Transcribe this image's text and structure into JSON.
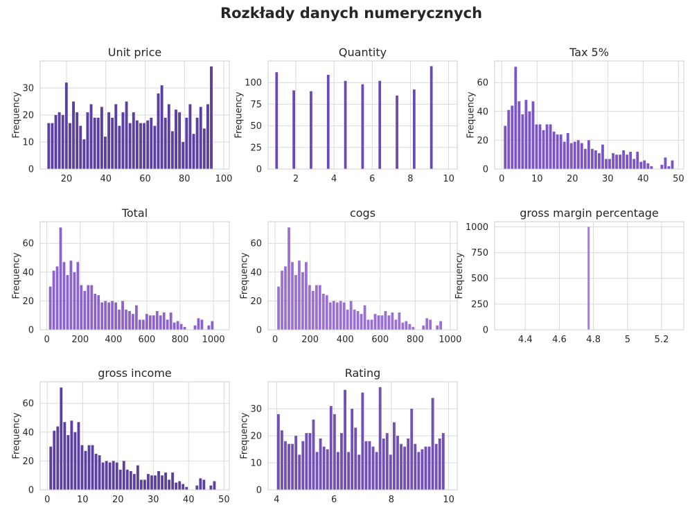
{
  "figure": {
    "title": "Rozkłady danych numerycznych"
  },
  "chart_data": [
    {
      "type": "bar",
      "title": "Unit price",
      "ylabel": "Frequency",
      "xlim": [
        6.6,
        102.8
      ],
      "ylim": [
        0,
        40
      ],
      "xticks": [
        20,
        40,
        60,
        80,
        100
      ],
      "yticks": [
        0,
        10,
        20,
        30
      ],
      "color": "#5b3fa3",
      "bin_start": 10.08,
      "bin_width": 1.798,
      "values": [
        17,
        17,
        20,
        21,
        20,
        32,
        17,
        25,
        21,
        16,
        11,
        21,
        24,
        19,
        19,
        23,
        12,
        21,
        19,
        24,
        16,
        21,
        25,
        17,
        21,
        18,
        17,
        17,
        18,
        19,
        16,
        28,
        31,
        19,
        24,
        14,
        22,
        21,
        10,
        19,
        24,
        13,
        19,
        23,
        15,
        24,
        38
      ]
    },
    {
      "type": "bar",
      "title": "Quantity",
      "ylabel": "Frequency",
      "xlim": [
        0.55,
        10.45
      ],
      "ylim": [
        0,
        125
      ],
      "xticks": [
        2,
        4,
        6,
        8,
        10
      ],
      "yticks": [
        0,
        25,
        50,
        75,
        100
      ],
      "color": "#6a48b8",
      "bin_start": 0.91,
      "bin_width": 0.18,
      "values": [
        112,
        0,
        0,
        0,
        0,
        91,
        0,
        0,
        0,
        0,
        90,
        0,
        0,
        0,
        0,
        109,
        0,
        0,
        0,
        0,
        102,
        0,
        0,
        0,
        0,
        98,
        0,
        0,
        0,
        0,
        102,
        0,
        0,
        0,
        0,
        85,
        0,
        0,
        0,
        0,
        92,
        0,
        0,
        0,
        0,
        119
      ]
    },
    {
      "type": "bar",
      "title": "Tax 5%",
      "ylabel": "Frequency",
      "xlim": [
        -2.0,
        51.5
      ],
      "ylim": [
        0,
        75
      ],
      "xticks": [
        0,
        10,
        20,
        30,
        40,
        50
      ],
      "yticks": [
        0,
        20,
        40,
        60
      ],
      "color": "#7b55c8",
      "bin_start": 0.51,
      "bin_width": 0.985,
      "values": [
        30,
        41,
        44,
        71,
        47,
        38,
        48,
        40,
        47,
        31,
        31,
        27,
        31,
        31,
        26,
        24,
        24,
        19,
        25,
        18,
        19,
        20,
        18,
        14,
        20,
        14,
        13,
        11,
        17,
        7,
        7,
        11,
        10,
        10,
        13,
        10,
        12,
        7,
        12,
        5,
        6,
        4,
        2,
        0,
        0,
        3,
        8,
        2,
        6
      ]
    },
    {
      "type": "bar",
      "title": "Total",
      "ylabel": "Frequency",
      "xlim": [
        -40,
        1095
      ],
      "ylim": [
        0,
        75
      ],
      "xticks": [
        0,
        200,
        400,
        600,
        800,
        1000
      ],
      "yticks": [
        0,
        20,
        40,
        60
      ],
      "color": "#8c62cf",
      "bin_start": 10.68,
      "bin_width": 20.68,
      "values": [
        30,
        41,
        44,
        71,
        47,
        38,
        48,
        40,
        47,
        31,
        27,
        31,
        31,
        25,
        24,
        19,
        20,
        19,
        20,
        19,
        14,
        20,
        14,
        13,
        11,
        17,
        7,
        7,
        11,
        10,
        10,
        13,
        10,
        12,
        7,
        12,
        5,
        6,
        4,
        2,
        0,
        0,
        3,
        8,
        7,
        0,
        3,
        6
      ]
    },
    {
      "type": "bar",
      "title": "cogs",
      "ylabel": "Frequency",
      "xlim": [
        -40,
        1040
      ],
      "ylim": [
        0,
        75
      ],
      "xticks": [
        0,
        200,
        400,
        600,
        800,
        1000
      ],
      "yticks": [
        0,
        20,
        40,
        60
      ],
      "color": "#9b70d6",
      "bin_start": 10.17,
      "bin_width": 19.7,
      "values": [
        30,
        41,
        44,
        71,
        47,
        38,
        48,
        40,
        47,
        31,
        27,
        31,
        31,
        25,
        24,
        19,
        20,
        19,
        20,
        19,
        14,
        20,
        14,
        13,
        11,
        17,
        7,
        7,
        11,
        10,
        10,
        13,
        10,
        12,
        7,
        12,
        5,
        6,
        4,
        2,
        0,
        0,
        3,
        8,
        7,
        0,
        3,
        6
      ]
    },
    {
      "type": "bar",
      "title": "gross margin percentage",
      "ylabel": "Frequency",
      "xlim": [
        4.22,
        5.33
      ],
      "ylim": [
        0,
        1050
      ],
      "xticks": [
        4.4,
        4.6,
        4.8,
        5.0,
        5.2
      ],
      "yticks": [
        0,
        250,
        500,
        750,
        1000
      ],
      "color": "#a47fd9",
      "bin_start": 4.7635,
      "bin_width": 0.017,
      "values": [
        1000
      ]
    },
    {
      "type": "bar",
      "title": "gross income",
      "ylabel": "Frequency",
      "xlim": [
        -2.0,
        51.5
      ],
      "ylim": [
        0,
        75
      ],
      "xticks": [
        0,
        10,
        20,
        30,
        40,
        50
      ],
      "yticks": [
        0,
        20,
        40,
        60
      ],
      "color": "#5b3fa3",
      "bin_start": 0.51,
      "bin_width": 0.985,
      "values": [
        30,
        41,
        44,
        71,
        47,
        38,
        48,
        40,
        47,
        31,
        27,
        31,
        31,
        25,
        24,
        19,
        20,
        19,
        20,
        19,
        14,
        20,
        14,
        13,
        11,
        17,
        7,
        7,
        11,
        10,
        10,
        13,
        10,
        12,
        7,
        12,
        5,
        6,
        4,
        2,
        0,
        0,
        3,
        8,
        7,
        0,
        3,
        6
      ]
    },
    {
      "type": "bar",
      "title": "Rating",
      "ylabel": "Frequency",
      "xlim": [
        3.7,
        10.3
      ],
      "ylim": [
        0,
        40
      ],
      "xticks": [
        4,
        6,
        8,
        10
      ],
      "yticks": [
        0,
        10,
        20,
        30
      ],
      "color": "#7250b8",
      "bin_start": 4.0,
      "bin_width": 0.1224,
      "values": [
        28,
        22,
        18,
        17,
        17,
        20,
        13,
        18,
        21,
        21,
        26,
        14,
        19,
        16,
        15,
        31,
        28,
        14,
        21,
        37,
        14,
        30,
        23,
        13,
        36,
        18,
        18,
        16,
        14,
        38,
        19,
        21,
        13,
        25,
        20,
        17,
        16,
        19,
        30,
        17,
        14,
        15,
        16,
        16,
        34,
        17,
        19,
        21
      ]
    }
  ]
}
